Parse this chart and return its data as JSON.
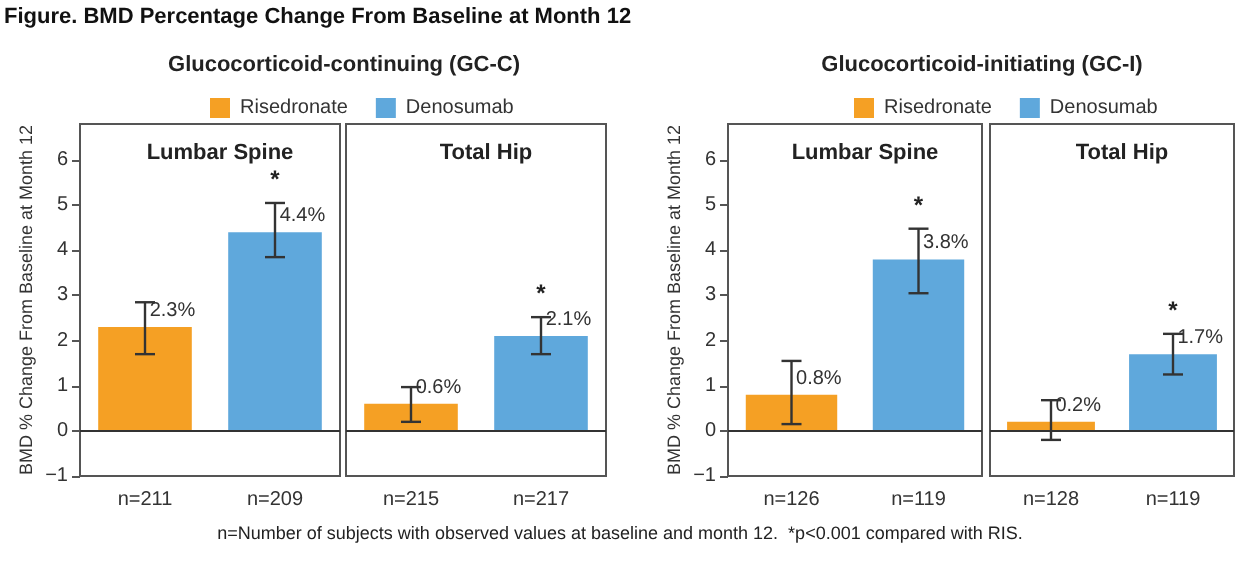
{
  "chart_data": [
    {
      "type": "bar",
      "title": "Lumbar Spine",
      "subtitle": "Glucocorticoid-continuing (GC-C)",
      "ylabel": "BMD % Change From Baseline at Month 12",
      "categories": [
        "n=211",
        "n=209"
      ],
      "series": [
        {
          "name": "Risedronate",
          "color": "#f5a024",
          "values": [
            2.3,
            null
          ],
          "errors": [
            [
              1.7,
              2.85
            ],
            null
          ],
          "value_labels": [
            "2.3%",
            null
          ]
        },
        {
          "name": "Denosumab",
          "color": "#5fa8dc",
          "values": [
            null,
            4.4
          ],
          "errors": [
            null,
            [
              3.85,
              5.05
            ]
          ],
          "value_labels": [
            null,
            "4.4%"
          ]
        }
      ],
      "ylim": [
        -1,
        6.8
      ],
      "yticks": [
        {
          "value": -1,
          "label": "−1"
        },
        0,
        1,
        2,
        3,
        4,
        5,
        6
      ],
      "grid": false,
      "legend": "top",
      "ref_lines": [
        {
          "axis": "y",
          "value": 0
        }
      ],
      "annotations": [
        "*",
        "Figure. BMD Percentage Change From Baseline at Month 12",
        "n=Number of subjects with observed values at baseline and month 12.  *p<0.001 compared with RIS."
      ]
    },
    {
      "type": "bar",
      "title": "Total Hip",
      "categories": [
        "n=215",
        "n=217"
      ],
      "series": [
        {
          "color": "#f5a024",
          "values": [
            0.6,
            null
          ],
          "errors": [
            [
              0.2,
              0.97
            ],
            null
          ],
          "value_labels": [
            "0.6%",
            null
          ]
        },
        {
          "color": "#5fa8dc",
          "values": [
            null,
            2.1
          ],
          "errors": [
            null,
            [
              1.7,
              2.52
            ]
          ],
          "value_labels": [
            null,
            "2.1%"
          ]
        }
      ],
      "ylim": [
        -1,
        6.8
      ],
      "grid": false,
      "tick_labels": "x",
      "ref_lines": [
        {
          "axis": "y",
          "value": 0
        }
      ],
      "annotations": [
        "*"
      ]
    },
    {
      "type": "bar",
      "title": "Lumbar Spine",
      "subtitle": "Glucocorticoid-initiating (GC-I)",
      "ylabel": "BMD % Change From Baseline at Month 12",
      "categories": [
        "n=126",
        "n=119"
      ],
      "series": [
        {
          "name": "Risedronate",
          "color": "#f5a024",
          "values": [
            0.8,
            null
          ],
          "errors": [
            [
              0.15,
              1.55
            ],
            null
          ],
          "value_labels": [
            "0.8%",
            null
          ]
        },
        {
          "name": "Denosumab",
          "color": "#5fa8dc",
          "values": [
            null,
            3.8
          ],
          "errors": [
            null,
            [
              3.05,
              4.48
            ]
          ],
          "value_labels": [
            null,
            "3.8%"
          ]
        }
      ],
      "ylim": [
        -1,
        6.8
      ],
      "yticks": [
        {
          "value": -1,
          "label": "−1"
        },
        0,
        1,
        2,
        3,
        4,
        5,
        6
      ],
      "grid": false,
      "legend": "top",
      "ref_lines": [
        {
          "axis": "y",
          "value": 0
        }
      ],
      "annotations": [
        "*"
      ]
    },
    {
      "type": "bar",
      "title": "Total Hip",
      "categories": [
        "n=128",
        "n=119"
      ],
      "series": [
        {
          "color": "#f5a024",
          "values": [
            0.2,
            null
          ],
          "errors": [
            [
              -0.2,
              0.68
            ],
            null
          ],
          "value_labels": [
            "0.2%",
            null
          ]
        },
        {
          "color": "#5fa8dc",
          "values": [
            null,
            1.7
          ],
          "errors": [
            null,
            [
              1.25,
              2.15
            ]
          ],
          "value_labels": [
            null,
            "1.7%"
          ]
        }
      ],
      "ylim": [
        -1,
        6.8
      ],
      "grid": false,
      "tick_labels": "x",
      "ref_lines": [
        {
          "axis": "y",
          "value": 0
        }
      ],
      "annotations": [
        "*"
      ]
    }
  ]
}
